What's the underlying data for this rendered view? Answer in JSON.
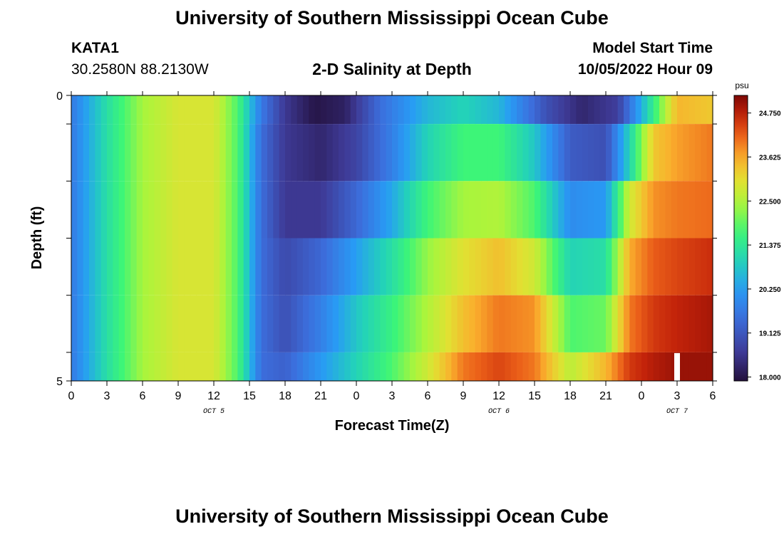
{
  "header": {
    "title": "University of Southern Mississippi Ocean Cube",
    "station": "KATA1",
    "location": "30.2580N  88.2130W",
    "plot_title": "2-D Salinity at Depth",
    "model_label": "Model Start Time",
    "model_time": "10/05/2022 Hour 09"
  },
  "footer": {
    "title": "University of Southern Mississippi Ocean Cube"
  },
  "colors": {
    "background": "#ffffff",
    "marker": "#ffffff"
  },
  "chart_data": {
    "type": "heatmap",
    "title": "2-D Salinity at Depth",
    "xlabel": "Forecast Time(Z)",
    "ylabel": "Depth (ft)",
    "x_start_hour": 0,
    "x_end_hour": 54,
    "x_ticks": [
      {
        "hour": 0,
        "label": "0"
      },
      {
        "hour": 3,
        "label": "3"
      },
      {
        "hour": 6,
        "label": "6"
      },
      {
        "hour": 9,
        "label": "9"
      },
      {
        "hour": 12,
        "label": "12"
      },
      {
        "hour": 15,
        "label": "15"
      },
      {
        "hour": 18,
        "label": "18"
      },
      {
        "hour": 21,
        "label": "21"
      },
      {
        "hour": 24,
        "label": "0"
      },
      {
        "hour": 27,
        "label": "3"
      },
      {
        "hour": 30,
        "label": "6"
      },
      {
        "hour": 33,
        "label": "9"
      },
      {
        "hour": 36,
        "label": "12"
      },
      {
        "hour": 39,
        "label": "15"
      },
      {
        "hour": 42,
        "label": "18"
      },
      {
        "hour": 45,
        "label": "21"
      },
      {
        "hour": 48,
        "label": "0"
      },
      {
        "hour": 51,
        "label": "3"
      },
      {
        "hour": 54,
        "label": "6"
      }
    ],
    "date_labels": [
      {
        "hour": 12,
        "label": "OCT 5"
      },
      {
        "hour": 36,
        "label": "OCT 6"
      },
      {
        "hour": 51,
        "label": "OCT 7"
      }
    ],
    "y_ticks": [
      {
        "depth": 0,
        "label": "0"
      },
      {
        "depth": 5,
        "label": "5"
      }
    ],
    "ylim": [
      0,
      5
    ],
    "layer_bounds": [
      0,
      0.5,
      1.5,
      2.5,
      3.5,
      4.5,
      5
    ],
    "colorbar": {
      "unit": "psu",
      "min": 17.9,
      "max": 25.2,
      "ticks": [
        "18.000",
        "19.125",
        "20.250",
        "21.375",
        "22.500",
        "23.625",
        "24.750"
      ],
      "tick_values": [
        18.0,
        19.125,
        20.25,
        21.375,
        22.5,
        23.625,
        24.75
      ]
    },
    "current_time_marker_hour": 51,
    "series": [
      {
        "depth_range": [
          0,
          0.5
        ],
        "keypoints": [
          [
            0,
            19.7
          ],
          [
            3,
            21.2
          ],
          [
            6,
            22.4
          ],
          [
            9,
            22.9
          ],
          [
            12,
            22.9
          ],
          [
            14,
            21.8
          ],
          [
            16,
            19.7
          ],
          [
            18,
            18.6
          ],
          [
            20.5,
            18.0
          ],
          [
            23,
            18.2
          ],
          [
            26,
            19.5
          ],
          [
            30,
            20.6
          ],
          [
            33,
            21.0
          ],
          [
            36,
            20.6
          ],
          [
            40,
            19.0
          ],
          [
            43,
            18.3
          ],
          [
            46,
            18.7
          ],
          [
            48,
            20.5
          ],
          [
            50,
            22.5
          ],
          [
            51,
            23.5
          ],
          [
            54,
            23.3
          ]
        ]
      },
      {
        "depth_range": [
          0.5,
          1.5
        ],
        "keypoints": [
          [
            0,
            19.7
          ],
          [
            3,
            21.2
          ],
          [
            6,
            22.4
          ],
          [
            9,
            22.9
          ],
          [
            12,
            22.9
          ],
          [
            14,
            21.8
          ],
          [
            16,
            19.5
          ],
          [
            18,
            18.6
          ],
          [
            21,
            18.3
          ],
          [
            24,
            18.8
          ],
          [
            27,
            19.8
          ],
          [
            30,
            21.0
          ],
          [
            33,
            21.7
          ],
          [
            36,
            21.7
          ],
          [
            39,
            20.8
          ],
          [
            42,
            19.2
          ],
          [
            45,
            19.0
          ],
          [
            47,
            21.0
          ],
          [
            49,
            23.3
          ],
          [
            51,
            23.7
          ],
          [
            54,
            24.0
          ]
        ]
      },
      {
        "depth_range": [
          1.5,
          2.5
        ],
        "keypoints": [
          [
            0,
            19.7
          ],
          [
            3,
            21.2
          ],
          [
            6,
            22.4
          ],
          [
            9,
            22.9
          ],
          [
            12,
            22.9
          ],
          [
            14,
            21.8
          ],
          [
            16,
            19.5
          ],
          [
            18,
            18.6
          ],
          [
            21,
            18.6
          ],
          [
            24,
            19.4
          ],
          [
            27,
            20.4
          ],
          [
            30,
            21.7
          ],
          [
            33,
            22.4
          ],
          [
            36,
            22.5
          ],
          [
            39,
            21.8
          ],
          [
            42,
            20.0
          ],
          [
            45,
            20.2
          ],
          [
            47,
            22.8
          ],
          [
            49,
            23.8
          ],
          [
            51,
            24.0
          ],
          [
            54,
            24.1
          ]
        ]
      },
      {
        "depth_range": [
          2.5,
          3.5
        ],
        "keypoints": [
          [
            0,
            19.7
          ],
          [
            3,
            21.2
          ],
          [
            6,
            22.4
          ],
          [
            9,
            22.9
          ],
          [
            12,
            22.9
          ],
          [
            14,
            21.8
          ],
          [
            16,
            19.5
          ],
          [
            18,
            18.9
          ],
          [
            21,
            19.4
          ],
          [
            24,
            20.3
          ],
          [
            27,
            21.2
          ],
          [
            30,
            22.3
          ],
          [
            33,
            23.0
          ],
          [
            36,
            23.4
          ],
          [
            39,
            22.8
          ],
          [
            42,
            21.0
          ],
          [
            45,
            21.2
          ],
          [
            47,
            23.6
          ],
          [
            49,
            24.2
          ],
          [
            51,
            24.4
          ],
          [
            54,
            24.6
          ]
        ]
      },
      {
        "depth_range": [
          3.5,
          4.5
        ],
        "keypoints": [
          [
            0,
            19.7
          ],
          [
            3,
            21.2
          ],
          [
            6,
            22.4
          ],
          [
            9,
            22.9
          ],
          [
            12,
            22.9
          ],
          [
            14,
            21.8
          ],
          [
            16,
            19.5
          ],
          [
            18,
            19.0
          ],
          [
            21,
            19.8
          ],
          [
            24,
            20.8
          ],
          [
            27,
            21.6
          ],
          [
            30,
            22.5
          ],
          [
            33,
            23.4
          ],
          [
            36,
            24.0
          ],
          [
            39,
            23.8
          ],
          [
            42,
            21.8
          ],
          [
            45,
            22.0
          ],
          [
            47,
            24.0
          ],
          [
            49,
            24.5
          ],
          [
            51,
            24.7
          ],
          [
            54,
            24.9
          ]
        ]
      },
      {
        "depth_range": [
          4.5,
          5
        ],
        "keypoints": [
          [
            0,
            19.7
          ],
          [
            3,
            21.2
          ],
          [
            6,
            22.4
          ],
          [
            9,
            22.9
          ],
          [
            12,
            22.9
          ],
          [
            14,
            21.8
          ],
          [
            16,
            19.5
          ],
          [
            18,
            19.3
          ],
          [
            21,
            20.2
          ],
          [
            24,
            21.0
          ],
          [
            27,
            21.8
          ],
          [
            30,
            22.8
          ],
          [
            33,
            24.0
          ],
          [
            36,
            24.4
          ],
          [
            39,
            24.0
          ],
          [
            42,
            22.6
          ],
          [
            45,
            23.5
          ],
          [
            47,
            24.5
          ],
          [
            49,
            24.8
          ],
          [
            51,
            25.0
          ],
          [
            54,
            25.0
          ]
        ]
      }
    ]
  }
}
